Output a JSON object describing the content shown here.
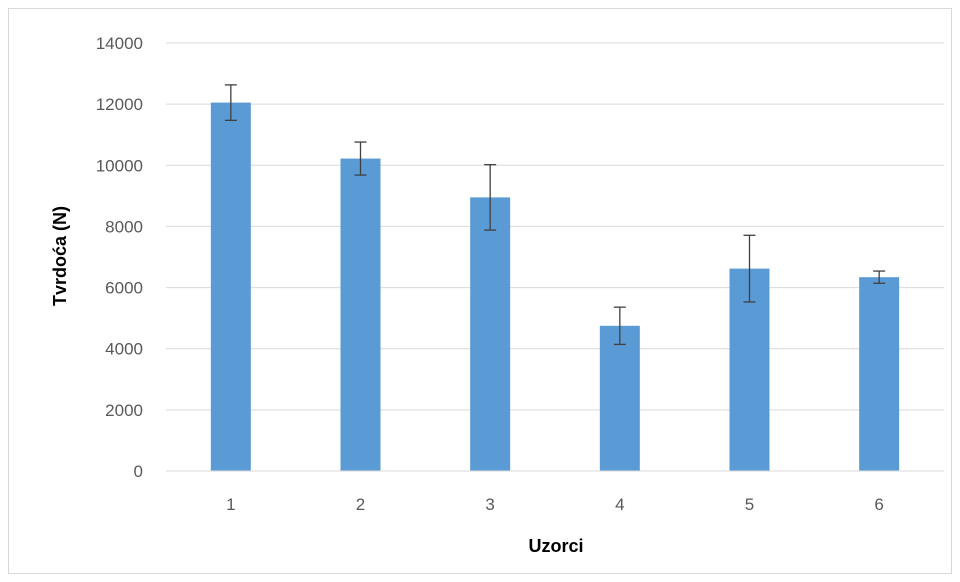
{
  "chart_data": {
    "type": "bar",
    "title": "",
    "xlabel": "Uzorci",
    "ylabel": "Tvrdoća (N)",
    "categories": [
      "1",
      "2",
      "3",
      "4",
      "5",
      "6"
    ],
    "values": [
      12050,
      10220,
      8950,
      4750,
      6620,
      6340
    ],
    "errors": [
      580,
      540,
      1070,
      610,
      1090,
      200
    ],
    "ylim": [
      0,
      14000
    ],
    "yticks": [
      0,
      2000,
      4000,
      6000,
      8000,
      10000,
      12000,
      14000
    ],
    "grid": true,
    "legend": "none",
    "colors": {
      "bar": "#5b9bd5",
      "grid": "#d9d9d9",
      "error_bar": "#404040"
    }
  }
}
